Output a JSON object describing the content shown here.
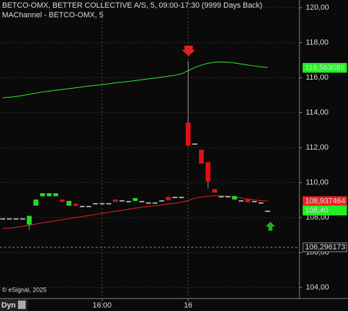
{
  "chart_data": {
    "type": "candlestick",
    "title": "BETCO-OMX, BETTER COLLECTIVE A/S, 5, 09:00-17:30 (9999 Days Back)",
    "subtitle": "MAChannel - BETCO-OMX, 5",
    "watermark": "© eSignal, 2025",
    "mode_label": "Dyn",
    "categories": [
      null,
      null,
      null,
      null,
      null,
      null,
      null,
      null,
      null,
      null,
      null,
      null,
      null,
      null,
      null,
      "16:00",
      null,
      null,
      null,
      null,
      null,
      null,
      null,
      null,
      null,
      null,
      null,
      null,
      "16",
      null,
      null,
      null,
      null,
      null,
      null,
      null,
      null,
      null,
      null,
      null,
      null
    ],
    "open": [
      107.96,
      107.96,
      107.96,
      107.96,
      107.6,
      108.68,
      109.22,
      109.22,
      109.22,
      109.03,
      108.68,
      108.8,
      108.67,
      108.67,
      108.83,
      108.83,
      108.83,
      109.03,
      108.99,
      108.95,
      108.95,
      108.95,
      108.87,
      108.87,
      108.99,
      109.19,
      109.19,
      109.19,
      113.43,
      112.24,
      111.88,
      111.17,
      109.62,
      109.23,
      109.23,
      109.03,
      108.99,
      109.07,
      108.95,
      108.87,
      108.4
    ],
    "high": [
      107.96,
      107.96,
      107.96,
      107.96,
      108.1,
      109.03,
      109.39,
      109.39,
      109.39,
      109.03,
      108.95,
      108.8,
      108.67,
      108.67,
      108.83,
      108.83,
      108.83,
      109.03,
      108.99,
      108.95,
      109.11,
      108.95,
      108.87,
      108.87,
      108.99,
      109.19,
      109.19,
      109.19,
      116.95,
      112.24,
      111.88,
      111.17,
      109.62,
      109.23,
      109.23,
      109.23,
      108.99,
      109.07,
      108.95,
      108.87,
      108.4
    ],
    "low": [
      107.96,
      107.96,
      107.96,
      107.96,
      107.3,
      108.68,
      109.22,
      109.22,
      109.22,
      108.9,
      108.68,
      108.67,
      108.67,
      108.67,
      108.83,
      108.83,
      108.83,
      108.9,
      108.99,
      108.95,
      108.95,
      108.95,
      108.87,
      108.87,
      108.99,
      108.99,
      109.19,
      109.19,
      112.08,
      112.24,
      111.09,
      109.66,
      109.43,
      109.23,
      109.23,
      109.03,
      108.99,
      108.87,
      108.95,
      108.87,
      108.4
    ],
    "close": [
      107.96,
      107.96,
      107.96,
      107.96,
      108.1,
      109.03,
      109.39,
      109.39,
      109.39,
      108.9,
      108.95,
      108.67,
      108.67,
      108.67,
      108.83,
      108.83,
      108.83,
      108.9,
      108.99,
      108.95,
      109.11,
      108.95,
      108.87,
      108.87,
      108.99,
      108.99,
      109.19,
      109.19,
      112.12,
      112.24,
      111.09,
      110.06,
      109.43,
      109.23,
      109.23,
      109.23,
      108.99,
      108.87,
      108.95,
      108.87,
      108.4
    ],
    "up_color": "#22dd22",
    "down_color": "#dd1111",
    "flat_color": "#aaaaaa",
    "channel_upper": {
      "color": "#33ee33",
      "values": [
        114.85,
        114.88,
        114.92,
        114.98,
        115.05,
        115.12,
        115.18,
        115.23,
        115.28,
        115.32,
        115.37,
        115.42,
        115.47,
        115.52,
        115.56,
        115.6,
        115.65,
        115.7,
        115.74,
        115.78,
        115.83,
        115.88,
        115.93,
        115.98,
        116.03,
        116.08,
        116.14,
        116.22,
        116.4,
        116.58,
        116.72,
        116.82,
        116.88,
        116.9,
        116.88,
        116.84,
        116.78,
        116.72,
        116.67,
        116.62,
        116.58
      ]
    },
    "channel_lower": {
      "color": "#ee2222",
      "values": [
        107.37,
        107.4,
        107.44,
        107.5,
        107.56,
        107.63,
        107.7,
        107.76,
        107.82,
        107.88,
        107.94,
        108.0,
        108.06,
        108.12,
        108.18,
        108.24,
        108.3,
        108.36,
        108.42,
        108.48,
        108.54,
        108.6,
        108.64,
        108.68,
        108.72,
        108.77,
        108.82,
        108.88,
        108.98,
        109.1,
        109.18,
        109.22,
        109.24,
        109.24,
        109.22,
        109.18,
        109.12,
        109.06,
        109.01,
        108.97,
        108.94
      ]
    },
    "price_markers": [
      {
        "value": 116.563086,
        "label": "116,563086",
        "color": "#22ee22"
      },
      {
        "value": 108.937464,
        "label": "108,937464",
        "color": "#ee2222"
      },
      {
        "value": 108.4,
        "label": "108,40",
        "color": "#22ee22"
      },
      {
        "value": 106.296173,
        "label": "106,296173",
        "color": "#111111"
      }
    ],
    "ylim": [
      103.41,
      120.44
    ],
    "yticks": [
      {
        "value": 104,
        "label": "104,00"
      },
      {
        "value": 106,
        "label": "106,00"
      },
      {
        "value": 108,
        "label": "108,00"
      },
      {
        "value": 110,
        "label": "110,00"
      },
      {
        "value": 112,
        "label": "112,00"
      },
      {
        "value": 114,
        "label": "114,00"
      },
      {
        "value": 116,
        "label": "116,00"
      },
      {
        "value": 118,
        "label": "118,00"
      },
      {
        "value": 120,
        "label": "120,00"
      }
    ],
    "grid": true
  }
}
